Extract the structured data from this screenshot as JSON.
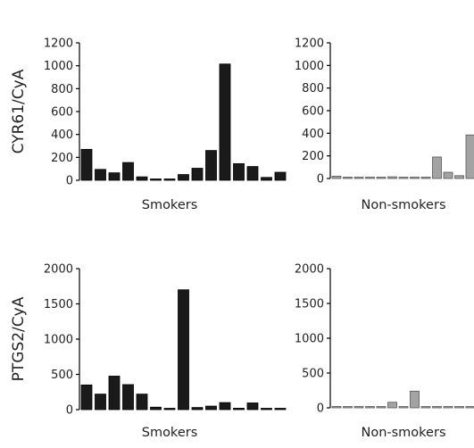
{
  "chart_data": [
    {
      "type": "bar",
      "panel": "top-left",
      "ylabel": "CYR61/CyA",
      "xlabel": "Smokers",
      "ylim": [
        0,
        1200
      ],
      "yticks": [
        "0",
        "200",
        "400",
        "600",
        "800",
        "1000",
        "1200"
      ],
      "values": [
        270,
        95,
        65,
        155,
        30,
        5,
        5,
        50,
        105,
        260,
        1015,
        145,
        120,
        25,
        70
      ],
      "bar_color": "#1a1a1a"
    },
    {
      "type": "bar",
      "panel": "top-right",
      "ylabel": "",
      "xlabel": "Non-smokers",
      "ylim": [
        0,
        1200
      ],
      "yticks": [
        "0",
        "200",
        "400",
        "600",
        "800",
        "1000",
        "1200"
      ],
      "values": [
        20,
        3,
        3,
        3,
        3,
        15,
        3,
        5,
        3,
        190,
        55,
        25,
        385
      ],
      "bar_color": "#a3a3a3"
    },
    {
      "type": "bar",
      "panel": "bottom-left",
      "ylabel": "PTGS2/CyA",
      "xlabel": "Smokers",
      "ylim": [
        0,
        2000
      ],
      "yticks": [
        "0",
        "500",
        "1000",
        "1500",
        "2000"
      ],
      "values": [
        350,
        220,
        475,
        355,
        220,
        35,
        5,
        1700,
        30,
        50,
        100,
        20,
        95,
        10,
        5
      ],
      "bar_color": "#1a1a1a"
    },
    {
      "type": "bar",
      "panel": "bottom-right",
      "ylabel": "",
      "xlabel": "Non-smokers",
      "ylim": [
        0,
        2000
      ],
      "yticks": [
        "0",
        "500",
        "1000",
        "1500",
        "2000"
      ],
      "values": [
        20,
        5,
        5,
        5,
        5,
        80,
        15,
        240,
        5,
        5,
        5,
        5,
        15,
        30
      ],
      "bar_color": "#a3a3a3"
    }
  ]
}
